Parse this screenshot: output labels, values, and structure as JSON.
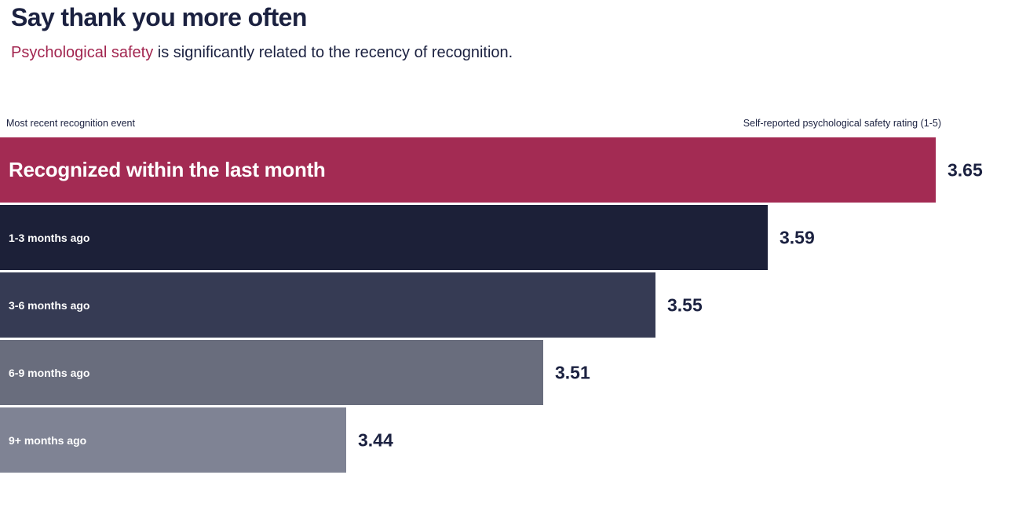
{
  "page": {
    "title": "Say thank you more often",
    "subtitle": {
      "highlight": "Psychological safety",
      "rest": " is significantly related to the recency of recognition."
    }
  },
  "axis": {
    "left_label": "Most recent recognition event",
    "right_label": "Self-reported psychological safety rating (1-5)"
  },
  "colors": {
    "accent_crimson": "#A32B53",
    "text_navy": "#1B2140",
    "background": "#FFFFFF"
  },
  "chart_data": {
    "type": "bar",
    "orientation": "horizontal",
    "title": "Say thank you more often",
    "subtitle": "Psychological safety is significantly related to the recency of recognition.",
    "xlabel": "Self-reported psychological safety rating (1-5)",
    "ylabel": "Most recent recognition event",
    "xlim": [
      3.3165,
      3.65
    ],
    "grid": false,
    "legend": "none",
    "categories": [
      "Recognized within the last month",
      "1-3 months ago",
      "3-6 months ago",
      "6-9 months ago",
      "9+ months ago"
    ],
    "values": [
      3.65,
      3.59,
      3.55,
      3.51,
      3.44
    ],
    "bars": [
      {
        "label": "Recognized within the last month",
        "value": 3.65,
        "color": "#A32B53"
      },
      {
        "label": "1-3 months ago",
        "value": 3.59,
        "color": "#1C2038"
      },
      {
        "label": "3-6 months ago",
        "value": 3.55,
        "color": "#363B54"
      },
      {
        "label": "6-9 months ago",
        "value": 3.51,
        "color": "#696D7D"
      },
      {
        "label": "9+ months ago",
        "value": 3.44,
        "color": "#7F8394"
      }
    ]
  }
}
